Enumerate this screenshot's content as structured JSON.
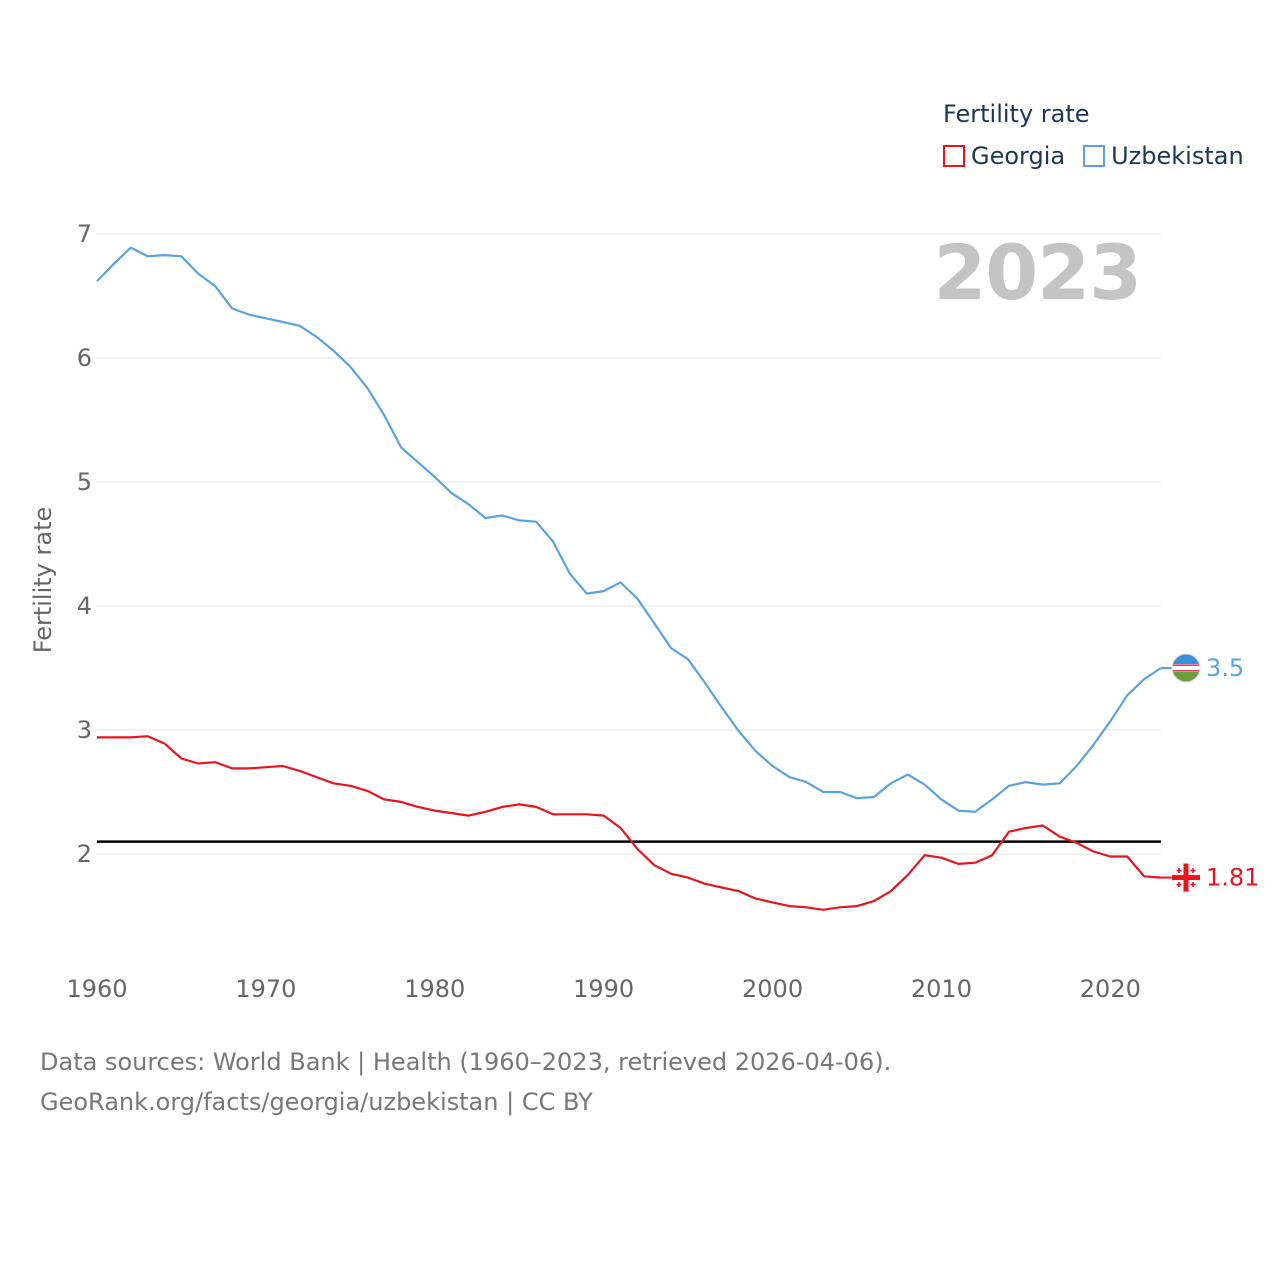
{
  "legend": {
    "title": "Fertility rate",
    "items": [
      {
        "label": "Georgia",
        "color": "#e8141e"
      },
      {
        "label": "Uzbekistan",
        "color": "#5aa3e0"
      }
    ]
  },
  "year_label": "2023",
  "footer": {
    "line1": "Data sources: World Bank | Health (1960–2023, retrieved 2026-04-06).",
    "line2": "GeoRank.org/facts/georgia/uzbekistan | CC BY"
  },
  "chart_data": {
    "type": "line",
    "title": "",
    "xlabel": "",
    "ylabel": "Fertility rate",
    "xlim": [
      1960,
      2023
    ],
    "ylim": [
      1.1,
      7.2
    ],
    "yticks": [
      2,
      3,
      4,
      5,
      6,
      7
    ],
    "xticks": [
      1960,
      1970,
      1980,
      1990,
      2000,
      2010,
      2020
    ],
    "reference_line": 2.1,
    "x": [
      1960,
      1961,
      1962,
      1963,
      1964,
      1965,
      1966,
      1967,
      1968,
      1969,
      1970,
      1971,
      1972,
      1973,
      1974,
      1975,
      1976,
      1977,
      1978,
      1979,
      1980,
      1981,
      1982,
      1983,
      1984,
      1985,
      1986,
      1987,
      1988,
      1989,
      1990,
      1991,
      1992,
      1993,
      1994,
      1995,
      1996,
      1997,
      1998,
      1999,
      2000,
      2001,
      2002,
      2003,
      2004,
      2005,
      2006,
      2007,
      2008,
      2009,
      2010,
      2011,
      2012,
      2013,
      2014,
      2015,
      2016,
      2017,
      2018,
      2019,
      2020,
      2021,
      2022,
      2023
    ],
    "series": [
      {
        "name": "Georgia",
        "color": "#e8141e",
        "end_label": "1.81",
        "values": [
          2.94,
          2.94,
          2.94,
          2.95,
          2.89,
          2.77,
          2.73,
          2.74,
          2.69,
          2.69,
          2.7,
          2.71,
          2.67,
          2.62,
          2.57,
          2.55,
          2.51,
          2.44,
          2.42,
          2.38,
          2.35,
          2.33,
          2.31,
          2.34,
          2.38,
          2.4,
          2.38,
          2.32,
          2.32,
          2.32,
          2.31,
          2.21,
          2.04,
          1.91,
          1.84,
          1.81,
          1.76,
          1.73,
          1.7,
          1.64,
          1.61,
          1.58,
          1.57,
          1.55,
          1.57,
          1.58,
          1.62,
          1.7,
          1.83,
          1.99,
          1.97,
          1.92,
          1.93,
          1.99,
          2.18,
          2.21,
          2.23,
          2.14,
          2.09,
          2.02,
          1.98,
          1.98,
          1.82,
          1.81
        ]
      },
      {
        "name": "Uzbekistan",
        "color": "#5aa3e0",
        "end_label": "3.5",
        "values": [
          6.62,
          6.76,
          6.89,
          6.82,
          6.83,
          6.82,
          6.68,
          6.58,
          6.4,
          6.35,
          6.32,
          6.29,
          6.26,
          6.17,
          6.06,
          5.93,
          5.76,
          5.54,
          5.28,
          5.16,
          5.04,
          4.91,
          4.82,
          4.71,
          4.73,
          4.69,
          4.68,
          4.52,
          4.26,
          4.1,
          4.12,
          4.19,
          4.06,
          3.86,
          3.66,
          3.57,
          3.38,
          3.18,
          2.99,
          2.83,
          2.71,
          2.62,
          2.58,
          2.5,
          2.5,
          2.45,
          2.46,
          2.57,
          2.64,
          2.56,
          2.44,
          2.35,
          2.34,
          2.44,
          2.55,
          2.58,
          2.56,
          2.57,
          2.71,
          2.88,
          3.07,
          3.28,
          3.41,
          3.5
        ]
      }
    ]
  }
}
